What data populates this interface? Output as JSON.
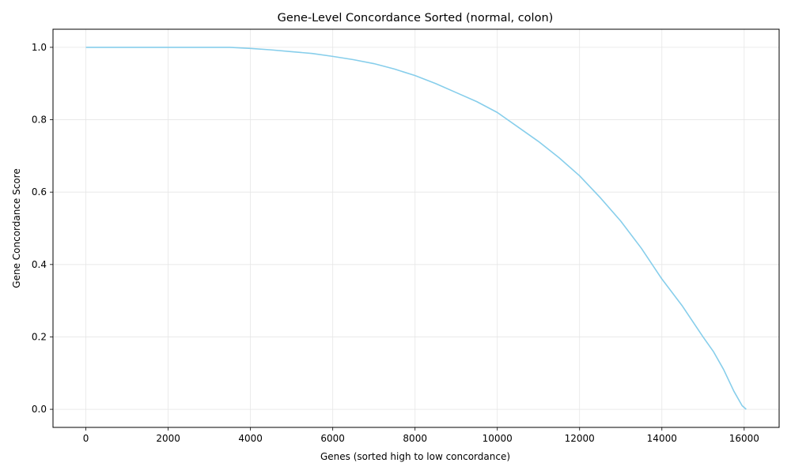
{
  "chart_data": {
    "type": "line",
    "title": "Gene-Level Concordance Sorted (normal, colon)",
    "xlabel": "Genes (sorted high to low concordance)",
    "ylabel": "Gene Concordance Score",
    "xlim": [
      -800,
      16850
    ],
    "ylim": [
      -0.05,
      1.05
    ],
    "xticks": [
      0,
      2000,
      4000,
      6000,
      8000,
      10000,
      12000,
      14000,
      16000
    ],
    "xtick_labels": [
      "0",
      "2000",
      "4000",
      "6000",
      "8000",
      "10000",
      "12000",
      "14000",
      "16000"
    ],
    "yticks": [
      0.0,
      0.2,
      0.4,
      0.6,
      0.8,
      1.0
    ],
    "ytick_labels": [
      "0.0",
      "0.2",
      "0.4",
      "0.6",
      "0.8",
      "1.0"
    ],
    "grid": true,
    "line_color": "#87ceeb",
    "series": [
      {
        "x": [
          0,
          500,
          1000,
          1500,
          2000,
          2500,
          3000,
          3500,
          4000,
          4500,
          5000,
          5500,
          6000,
          6500,
          7000,
          7500,
          8000,
          8500,
          9000,
          9500,
          10000,
          10500,
          11000,
          11500,
          12000,
          12500,
          13000,
          13500,
          14000,
          14500,
          15000,
          15250,
          15500,
          15750,
          15950,
          16050
        ],
        "values": [
          1.0,
          1.0,
          1.0,
          1.0,
          1.0,
          1.0,
          1.0,
          1.0,
          0.997,
          0.993,
          0.988,
          0.983,
          0.975,
          0.966,
          0.955,
          0.94,
          0.922,
          0.9,
          0.875,
          0.85,
          0.82,
          0.78,
          0.74,
          0.695,
          0.645,
          0.585,
          0.52,
          0.445,
          0.36,
          0.285,
          0.2,
          0.16,
          0.11,
          0.05,
          0.01,
          0.0
        ]
      }
    ]
  }
}
